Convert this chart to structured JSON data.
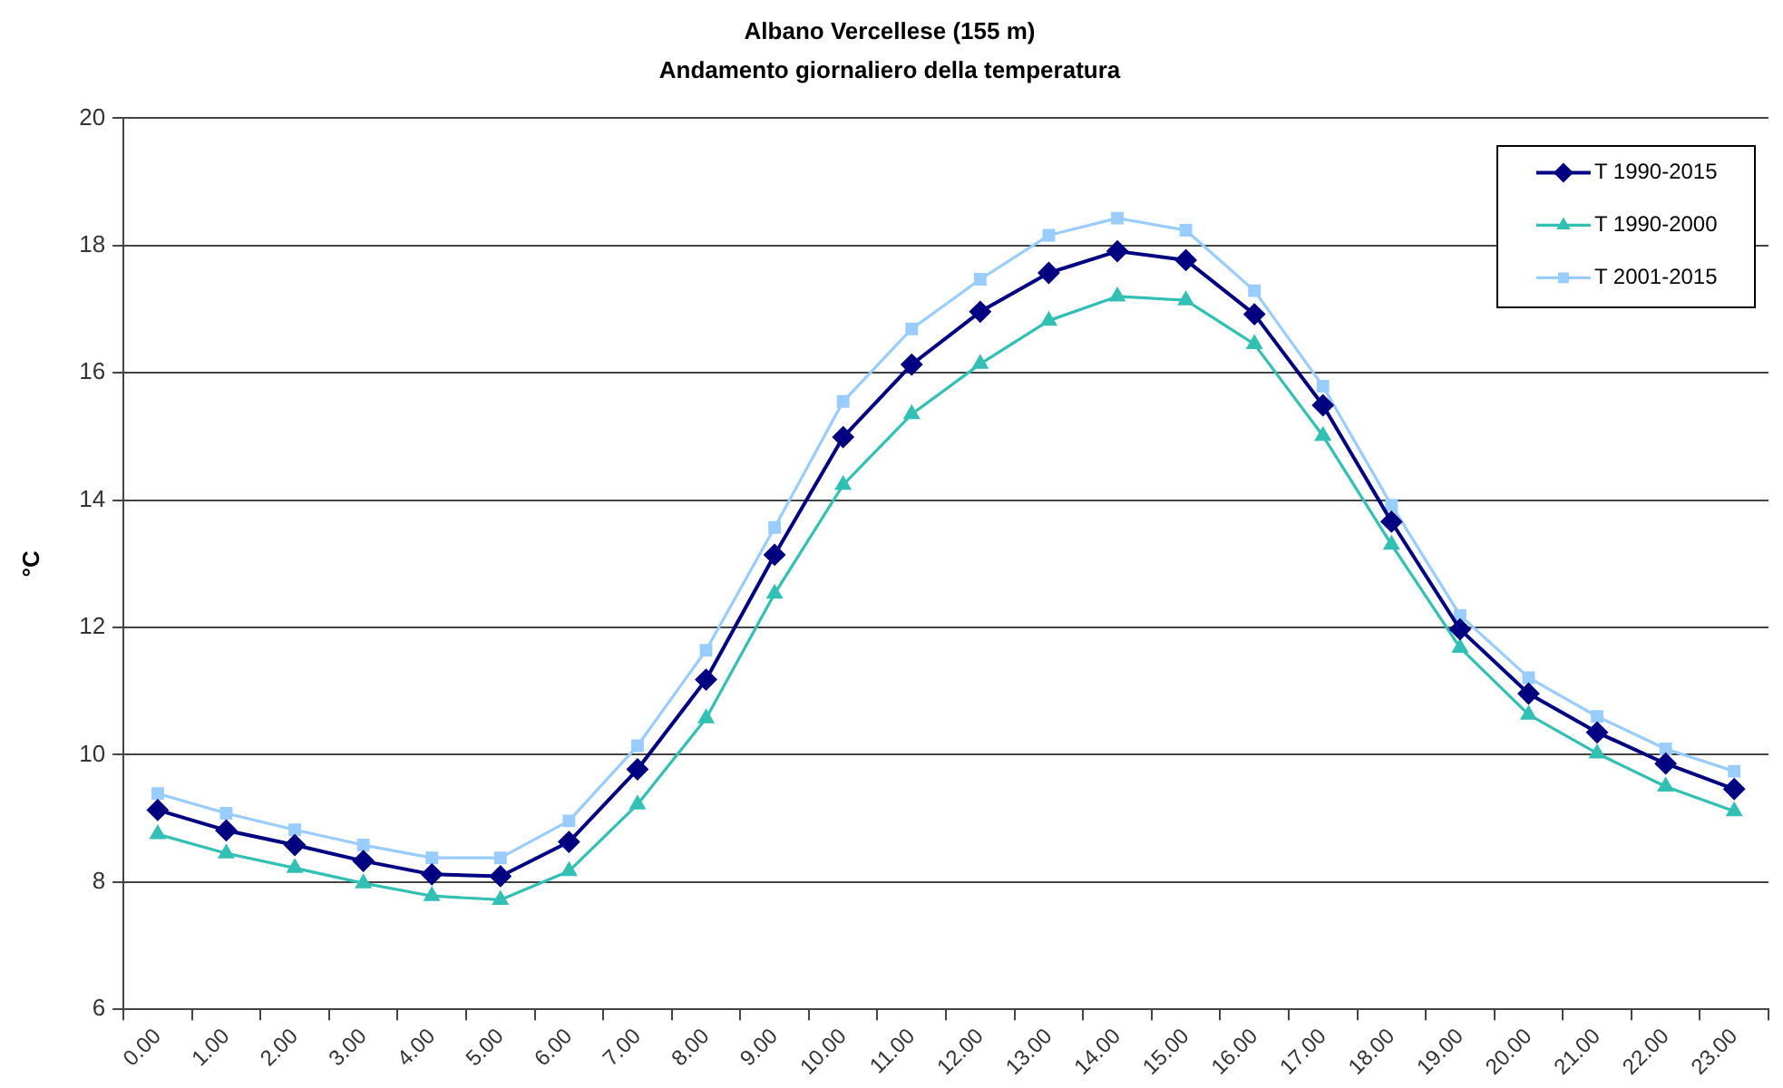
{
  "chart_data": {
    "type": "line",
    "title": "Albano Vercellese (155 m)",
    "subtitle": "Andamento giornaliero della temperatura",
    "ylabel": "°C",
    "categories": [
      "0.00",
      "1.00",
      "2.00",
      "3.00",
      "4.00",
      "5.00",
      "6.00",
      "7.00",
      "8.00",
      "9.00",
      "10.00",
      "11.00",
      "12.00",
      "13.00",
      "14.00",
      "15.00",
      "16.00",
      "17.00",
      "18.00",
      "19.00",
      "20.00",
      "21.00",
      "22.00",
      "23.00"
    ],
    "series": [
      {
        "name": "T 1990-2015",
        "color": "#000080",
        "marker": "diamond",
        "values": [
          9.13,
          8.81,
          8.58,
          8.33,
          8.12,
          8.09,
          8.63,
          9.77,
          11.18,
          13.14,
          14.99,
          16.13,
          16.96,
          17.57,
          17.91,
          17.77,
          16.92,
          15.49,
          13.66,
          11.97,
          10.96,
          10.35,
          9.86,
          9.46
        ]
      },
      {
        "name": "T 1990-2000",
        "color": "#33c0b4",
        "marker": "triangle",
        "values": [
          8.75,
          8.45,
          8.22,
          7.98,
          7.78,
          7.72,
          8.17,
          9.22,
          10.57,
          12.53,
          14.24,
          15.35,
          16.14,
          16.82,
          17.2,
          17.14,
          16.45,
          15.01,
          13.3,
          11.68,
          10.63,
          10.02,
          9.5,
          9.11
        ]
      },
      {
        "name": "T 2001-2015",
        "color": "#99ccff",
        "marker": "square",
        "values": [
          9.39,
          9.08,
          8.82,
          8.58,
          8.38,
          8.38,
          8.96,
          10.14,
          11.64,
          13.57,
          15.55,
          16.69,
          17.47,
          18.16,
          18.43,
          18.24,
          17.29,
          15.79,
          13.92,
          12.19,
          11.21,
          10.6,
          10.09,
          9.74
        ]
      }
    ],
    "ylim": [
      6,
      20
    ],
    "yticks": [
      6,
      8,
      10,
      12,
      14,
      16,
      18,
      20
    ],
    "grid": "y",
    "legend": "top right"
  }
}
